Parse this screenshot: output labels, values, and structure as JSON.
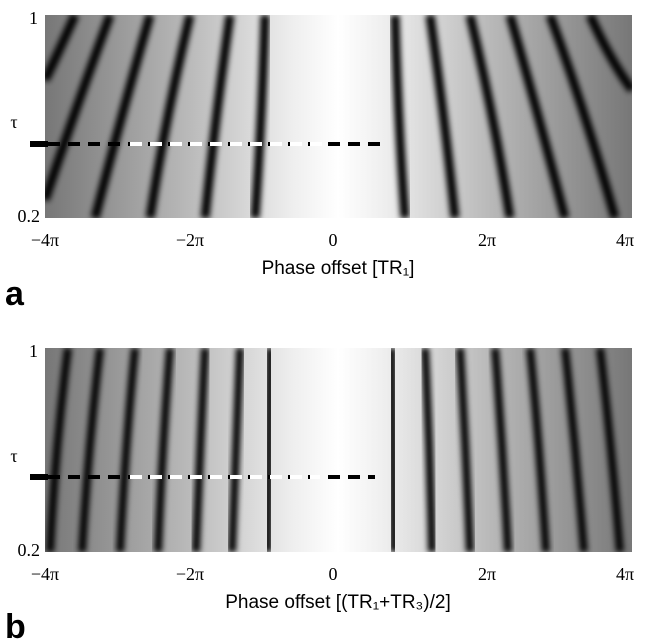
{
  "figure": {
    "panels": [
      {
        "label": "a",
        "ylabel": "τ",
        "yticks": [
          "1",
          "0.2"
        ],
        "xticks": [
          "−4π",
          "−2π",
          "0",
          "2π",
          "4π"
        ],
        "xlabel": "Phase offset [TR₁]"
      },
      {
        "label": "b",
        "ylabel": "τ",
        "yticks": [
          "1",
          "0.2"
        ],
        "xticks": [
          "−4π",
          "−2π",
          "0",
          "2π",
          "4π"
        ],
        "xlabel": "Phase offset [(TR₁+TR₃)/2]"
      }
    ]
  }
}
